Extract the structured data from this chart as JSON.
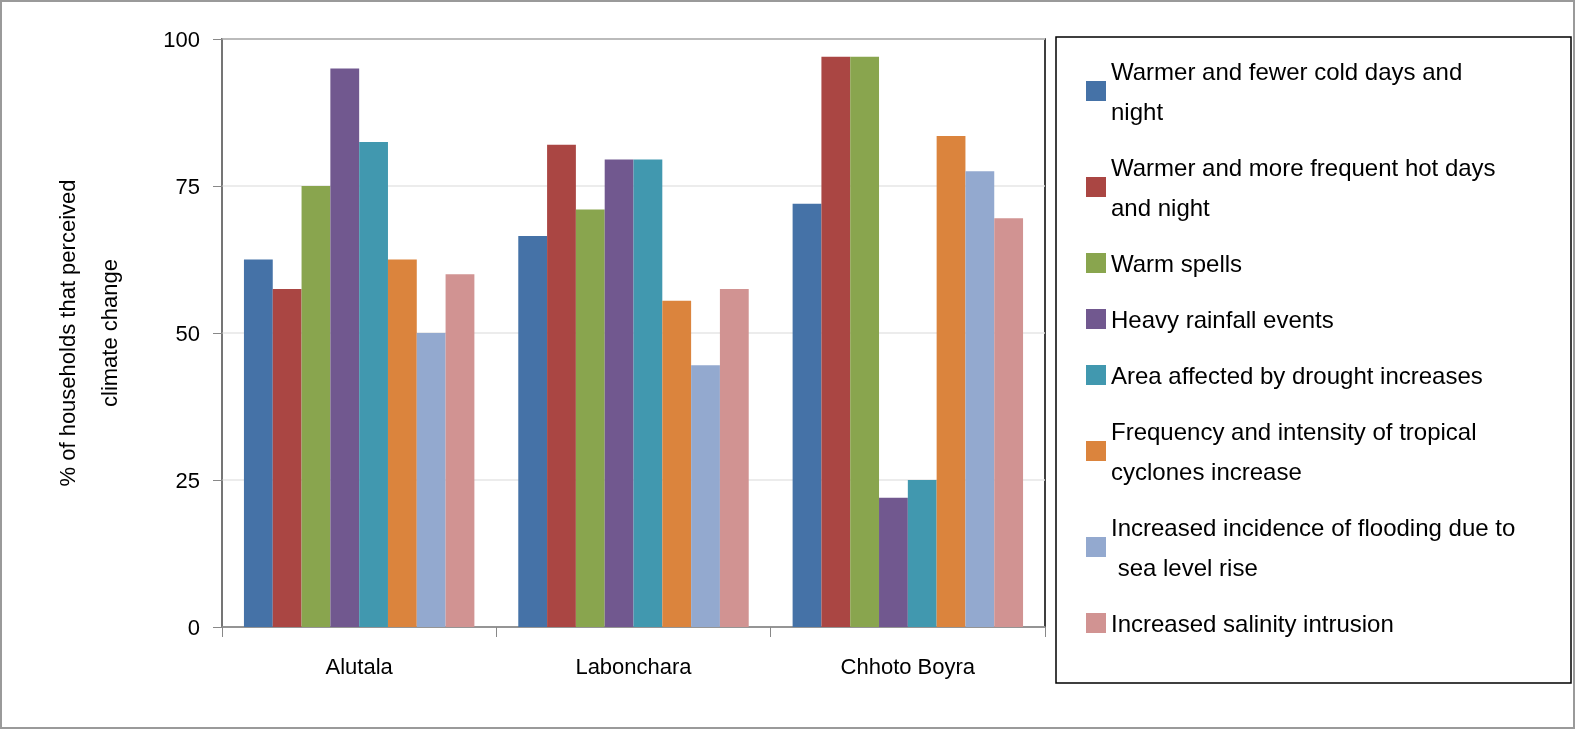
{
  "chart_data": {
    "type": "bar",
    "ylabel": "% of households that perceived climate change",
    "categories": [
      "Alutala",
      "Labonchara",
      "Chhoto Boyra"
    ],
    "series": [
      {
        "name": "Warmer and fewer cold days and night",
        "color": "#4572a7",
        "values": [
          62.5,
          66.5,
          72
        ]
      },
      {
        "name": "Warmer and more frequent hot days and night",
        "color": "#aa4643",
        "values": [
          57.5,
          82,
          97
        ]
      },
      {
        "name": "Warm spells",
        "color": "#89a54e",
        "values": [
          75,
          71,
          97
        ]
      },
      {
        "name": "Heavy rainfall events",
        "color": "#71588f",
        "values": [
          95,
          79.5,
          22
        ]
      },
      {
        "name": "Area affected by drought increases",
        "color": "#4198af",
        "values": [
          82.5,
          79.5,
          25
        ]
      },
      {
        "name": "Frequency and intensity of tropical cyclones increase",
        "color": "#db843d",
        "values": [
          62.5,
          55.5,
          83.5
        ]
      },
      {
        "name": "Increased incidence of flooding due to sea level rise",
        "color": "#93a9cf",
        "values": [
          50,
          44.5,
          77.5
        ]
      },
      {
        "name": "Increased salinity intrusion",
        "color": "#d19392",
        "values": [
          60,
          57.5,
          69.5
        ]
      }
    ],
    "ylim": [
      0,
      100
    ],
    "yticks": [
      0,
      25,
      50,
      75,
      100
    ],
    "grid": "y",
    "legend": "right"
  }
}
